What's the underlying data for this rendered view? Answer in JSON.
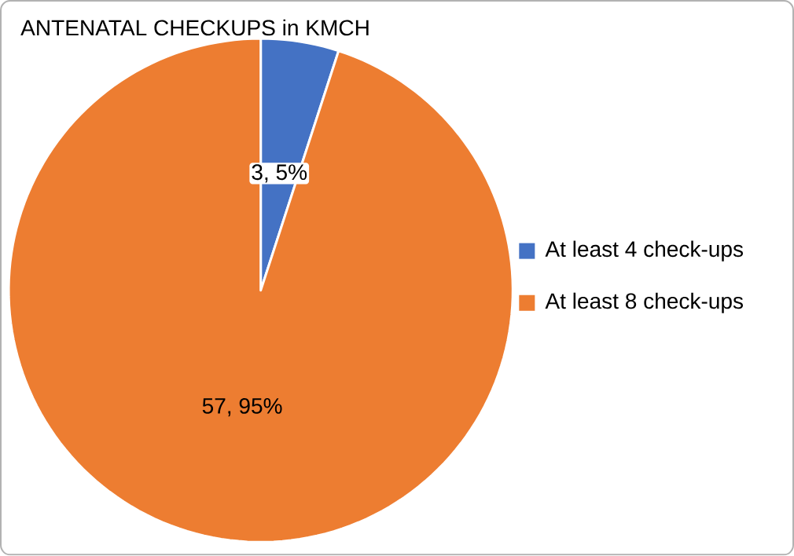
{
  "chart_data": {
    "type": "pie",
    "title": "ANTENATAL CHECKUPS in KMCH",
    "categories": [
      "At least 4 check-ups",
      "At least 8 check-ups"
    ],
    "values": [
      3,
      57
    ],
    "colors": [
      "#4472c4",
      "#ed7d31"
    ],
    "value_labels": [
      "3, 5%",
      "57, 95%"
    ],
    "legend": "right"
  }
}
